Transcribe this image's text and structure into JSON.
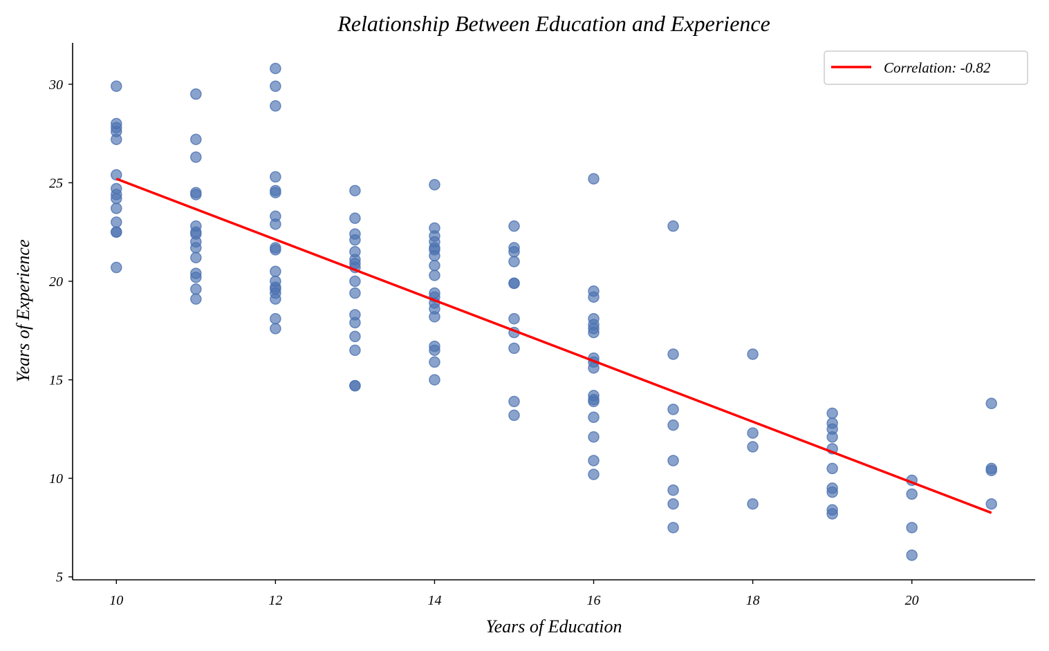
{
  "chart_data": {
    "type": "scatter",
    "title": "Relationship Between Education and Experience",
    "xlabel": "Years of Education",
    "ylabel": "Years of Experience",
    "xlim": [
      9.45,
      21.55
    ],
    "ylim": [
      4.85,
      32.1
    ],
    "xticks": [
      10,
      12,
      14,
      16,
      18,
      20
    ],
    "yticks": [
      5,
      10,
      15,
      20,
      25,
      30
    ],
    "grid": false,
    "legend_position": "top-right",
    "colors": {
      "points": "#4c72b0",
      "line": "#ff0000"
    },
    "series": [
      {
        "type": "scatter",
        "points": [
          [
            10,
            29.9
          ],
          [
            10,
            28.0
          ],
          [
            10,
            27.8
          ],
          [
            10,
            27.6
          ],
          [
            10,
            27.2
          ],
          [
            10,
            25.4
          ],
          [
            10,
            24.7
          ],
          [
            10,
            24.4
          ],
          [
            10,
            24.2
          ],
          [
            10,
            23.7
          ],
          [
            10,
            23.0
          ],
          [
            10,
            22.5
          ],
          [
            10,
            22.5
          ],
          [
            10,
            20.7
          ],
          [
            11,
            29.5
          ],
          [
            11,
            27.2
          ],
          [
            11,
            26.3
          ],
          [
            11,
            24.5
          ],
          [
            11,
            24.4
          ],
          [
            11,
            22.8
          ],
          [
            11,
            22.5
          ],
          [
            11,
            22.4
          ],
          [
            11,
            22.0
          ],
          [
            11,
            21.7
          ],
          [
            11,
            21.2
          ],
          [
            11,
            20.4
          ],
          [
            11,
            20.2
          ],
          [
            11,
            19.6
          ],
          [
            11,
            19.1
          ],
          [
            12,
            30.8
          ],
          [
            12,
            29.9
          ],
          [
            12,
            28.9
          ],
          [
            12,
            25.3
          ],
          [
            12,
            24.6
          ],
          [
            12,
            24.5
          ],
          [
            12,
            23.3
          ],
          [
            12,
            22.9
          ],
          [
            12,
            21.7
          ],
          [
            12,
            21.6
          ],
          [
            12,
            20.5
          ],
          [
            12,
            20.0
          ],
          [
            12,
            19.7
          ],
          [
            12,
            19.6
          ],
          [
            12,
            19.4
          ],
          [
            12,
            19.1
          ],
          [
            12,
            18.1
          ],
          [
            12,
            17.6
          ],
          [
            13,
            24.6
          ],
          [
            13,
            23.2
          ],
          [
            13,
            22.4
          ],
          [
            13,
            22.1
          ],
          [
            13,
            21.5
          ],
          [
            13,
            21.1
          ],
          [
            13,
            20.9
          ],
          [
            13,
            20.7
          ],
          [
            13,
            20.0
          ],
          [
            13,
            19.4
          ],
          [
            13,
            18.3
          ],
          [
            13,
            17.9
          ],
          [
            13,
            17.2
          ],
          [
            13,
            16.5
          ],
          [
            13,
            14.7
          ],
          [
            13,
            14.7
          ],
          [
            14,
            24.9
          ],
          [
            14,
            22.7
          ],
          [
            14,
            22.3
          ],
          [
            14,
            22.0
          ],
          [
            14,
            21.7
          ],
          [
            14,
            21.6
          ],
          [
            14,
            21.3
          ],
          [
            14,
            20.8
          ],
          [
            14,
            20.3
          ],
          [
            14,
            19.4
          ],
          [
            14,
            19.2
          ],
          [
            14,
            18.9
          ],
          [
            14,
            18.6
          ],
          [
            14,
            18.2
          ],
          [
            14,
            16.7
          ],
          [
            14,
            16.5
          ],
          [
            14,
            15.9
          ],
          [
            14,
            15.0
          ],
          [
            15,
            22.8
          ],
          [
            15,
            21.7
          ],
          [
            15,
            21.5
          ],
          [
            15,
            21.0
          ],
          [
            15,
            19.9
          ],
          [
            15,
            19.9
          ],
          [
            15,
            18.1
          ],
          [
            15,
            17.4
          ],
          [
            15,
            16.6
          ],
          [
            15,
            13.9
          ],
          [
            15,
            13.2
          ],
          [
            16,
            25.2
          ],
          [
            16,
            19.5
          ],
          [
            16,
            19.2
          ],
          [
            16,
            18.1
          ],
          [
            16,
            17.8
          ],
          [
            16,
            17.6
          ],
          [
            16,
            17.4
          ],
          [
            16,
            16.1
          ],
          [
            16,
            15.9
          ],
          [
            16,
            15.6
          ],
          [
            16,
            14.2
          ],
          [
            16,
            14.0
          ],
          [
            16,
            13.9
          ],
          [
            16,
            13.1
          ],
          [
            16,
            12.1
          ],
          [
            16,
            10.9
          ],
          [
            16,
            10.2
          ],
          [
            17,
            22.8
          ],
          [
            17,
            16.3
          ],
          [
            17,
            13.5
          ],
          [
            17,
            12.7
          ],
          [
            17,
            10.9
          ],
          [
            17,
            9.4
          ],
          [
            17,
            8.7
          ],
          [
            17,
            7.5
          ],
          [
            18,
            16.3
          ],
          [
            18,
            12.3
          ],
          [
            18,
            11.6
          ],
          [
            18,
            8.7
          ],
          [
            19,
            13.3
          ],
          [
            19,
            12.8
          ],
          [
            19,
            12.5
          ],
          [
            19,
            12.1
          ],
          [
            19,
            11.5
          ],
          [
            19,
            10.5
          ],
          [
            19,
            9.5
          ],
          [
            19,
            9.3
          ],
          [
            19,
            8.4
          ],
          [
            19,
            8.2
          ],
          [
            20,
            9.9
          ],
          [
            20,
            9.2
          ],
          [
            20,
            7.5
          ],
          [
            20,
            6.1
          ],
          [
            21,
            13.8
          ],
          [
            21,
            10.5
          ],
          [
            21,
            10.4
          ],
          [
            21,
            8.7
          ]
        ]
      },
      {
        "type": "line",
        "name": "Correlation: -0.82",
        "x": [
          10,
          21
        ],
        "y": [
          25.2,
          8.25
        ]
      }
    ]
  }
}
